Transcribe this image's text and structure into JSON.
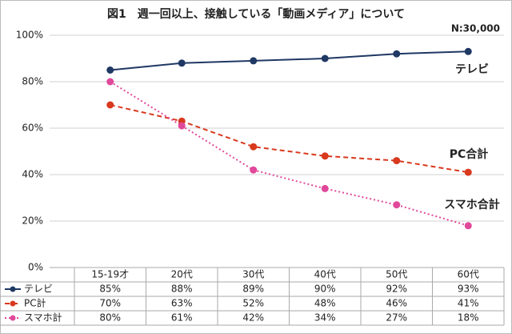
{
  "chart_data": {
    "type": "line",
    "title": "図1　週一回以上、接触している「動画メディア」について",
    "annotation": "N:30,000",
    "categories": [
      "15-19才",
      "20代",
      "30代",
      "40代",
      "50代",
      "60代"
    ],
    "ylim": [
      0,
      100
    ],
    "yticks": [
      {
        "value": 0,
        "label": "0%"
      },
      {
        "value": 20,
        "label": "20%"
      },
      {
        "value": 40,
        "label": "40%"
      },
      {
        "value": 60,
        "label": "60%"
      },
      {
        "value": 80,
        "label": "80%"
      },
      {
        "value": 100,
        "label": "100%"
      }
    ],
    "grid": true,
    "series": [
      {
        "name": "テレビ",
        "end_label": "テレビ",
        "color": "#1f3864",
        "style": "solid",
        "values": [
          85,
          88,
          89,
          90,
          92,
          93
        ],
        "value_labels": [
          "85%",
          "88%",
          "89%",
          "90%",
          "92%",
          "93%"
        ]
      },
      {
        "name": "PC計",
        "end_label": "PC合計",
        "color": "#d9391e",
        "style": "dashed",
        "values": [
          70,
          63,
          52,
          48,
          46,
          41
        ],
        "value_labels": [
          "70%",
          "63%",
          "52%",
          "48%",
          "46%",
          "41%"
        ]
      },
      {
        "name": "スマホ計",
        "end_label": "スマホ合計",
        "color": "#e0489a",
        "style": "dotted",
        "values": [
          80,
          61,
          42,
          34,
          27,
          18
        ],
        "value_labels": [
          "80%",
          "61%",
          "42%",
          "34%",
          "27%",
          "18%"
        ]
      }
    ]
  }
}
